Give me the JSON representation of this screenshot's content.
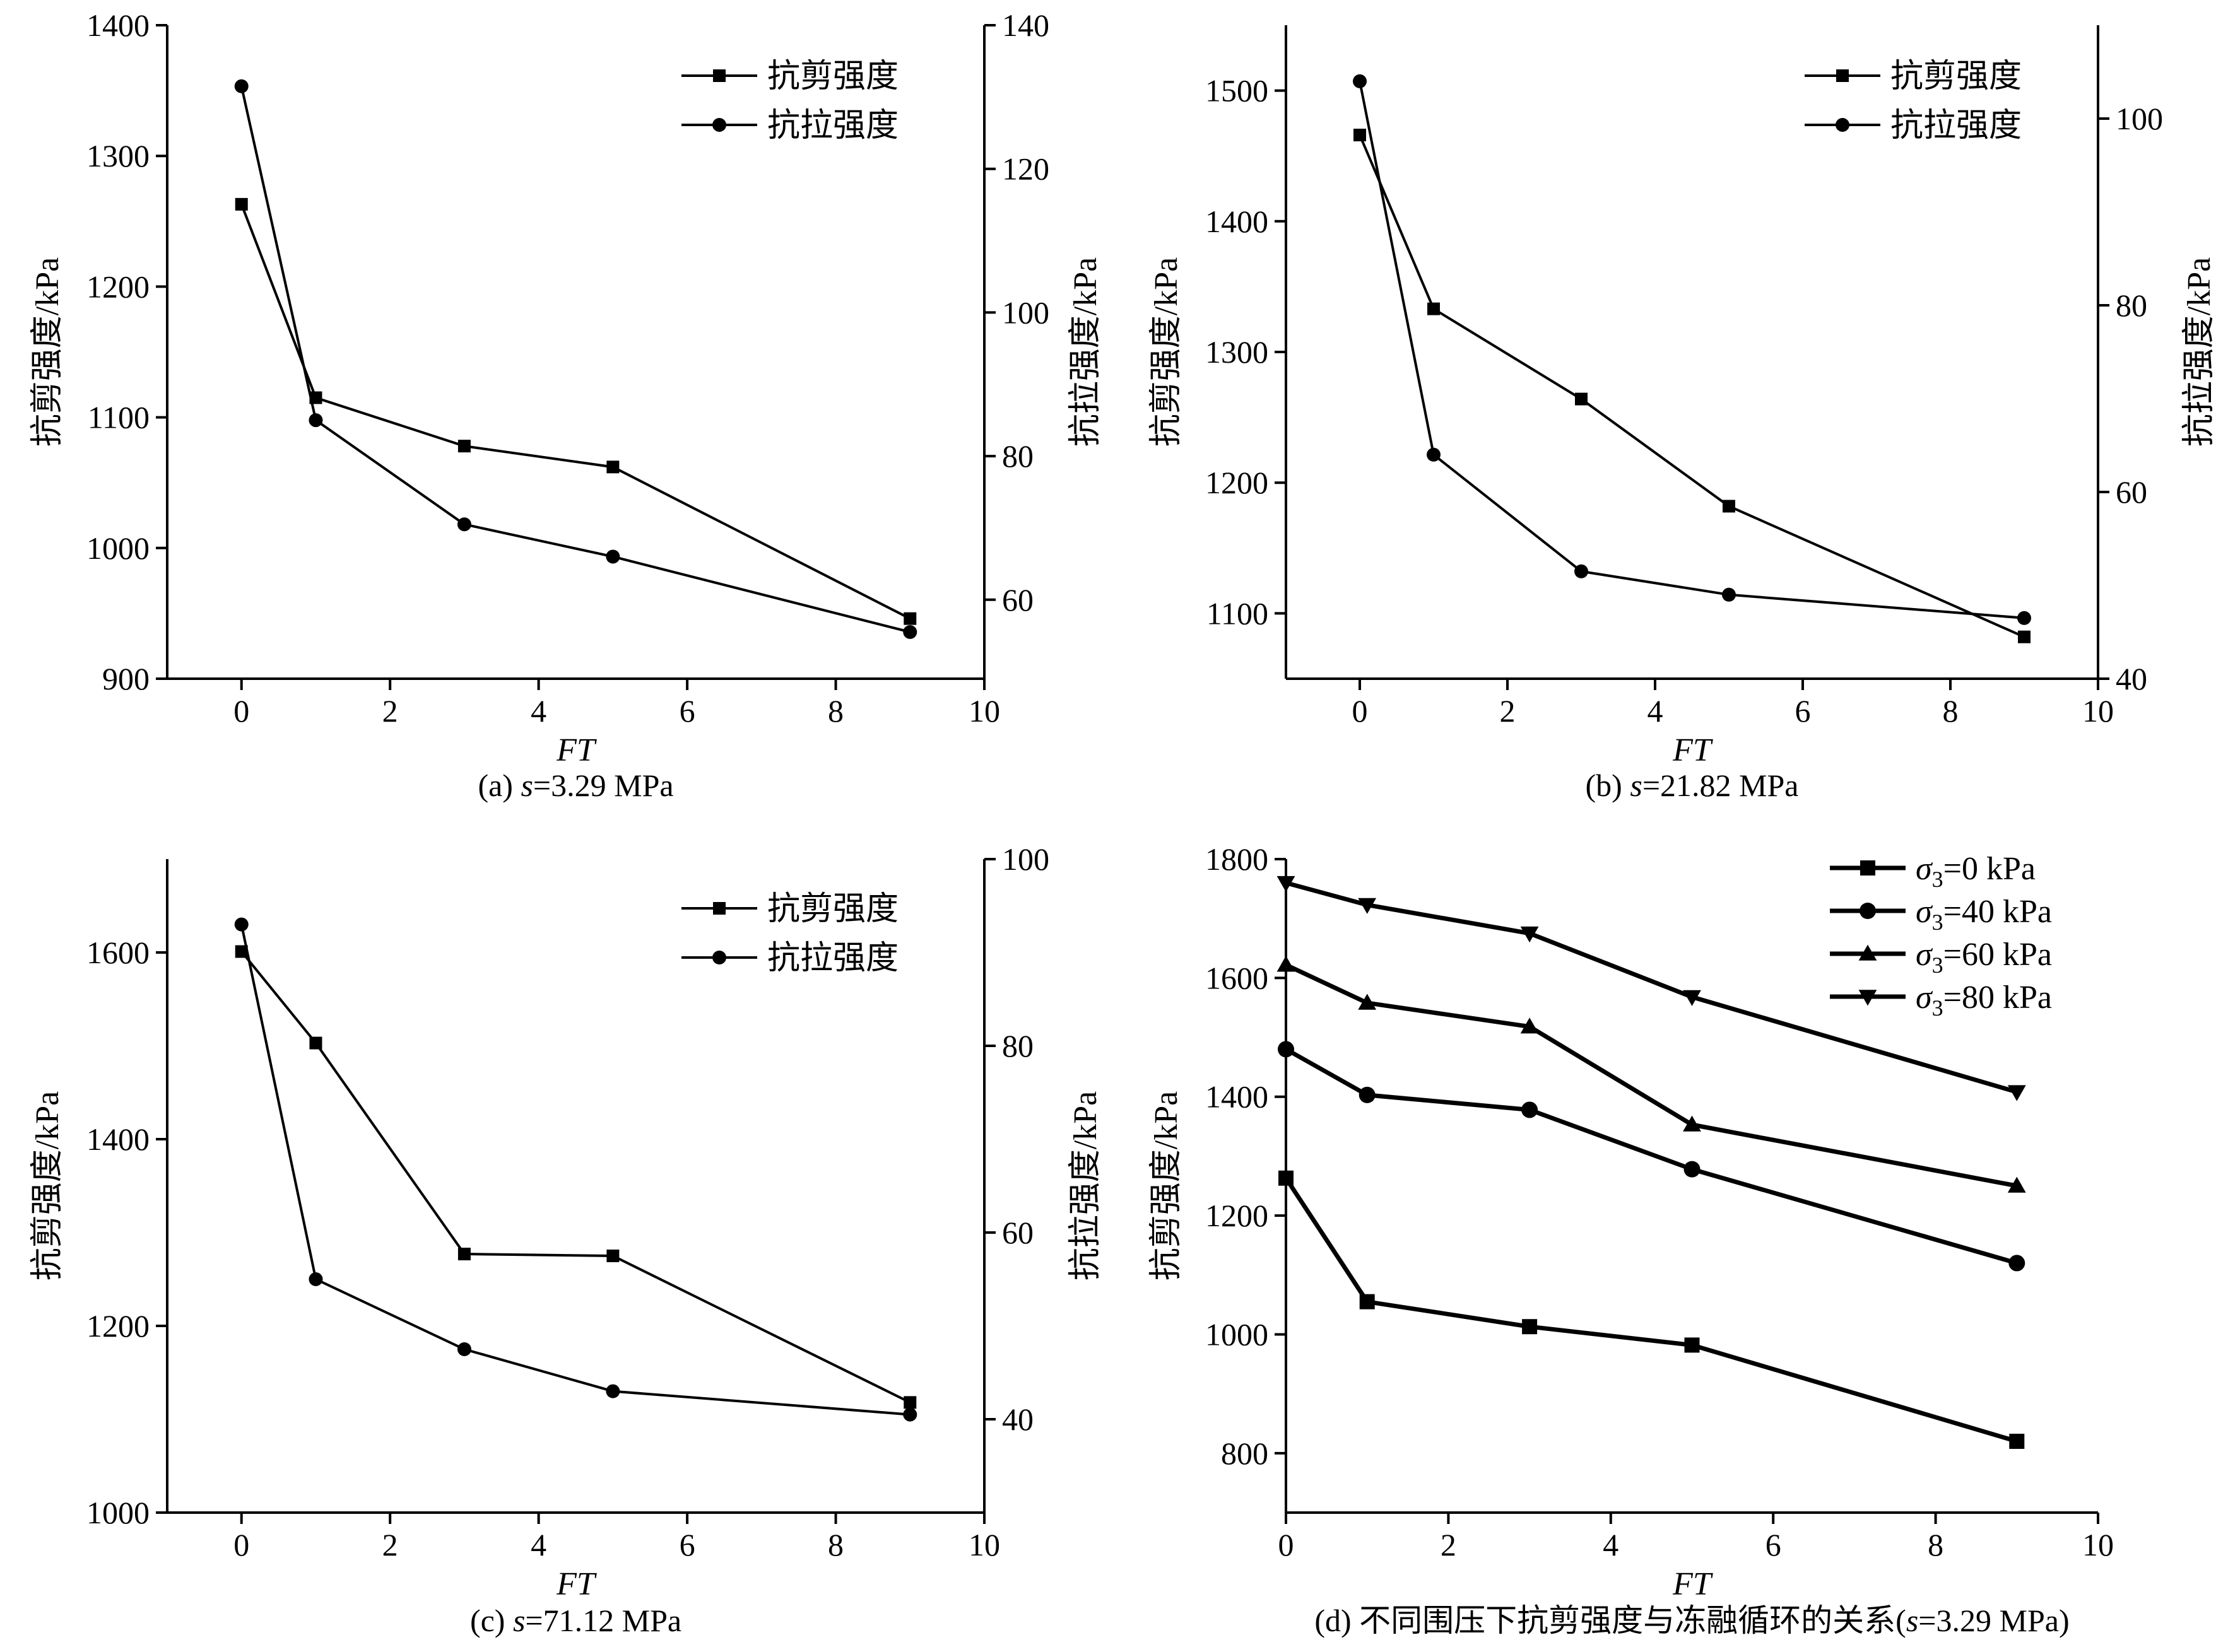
{
  "chart_data": [
    {
      "type": "line",
      "panel": "a",
      "caption_prefix": "(a) ",
      "caption_var": "s",
      "caption_suffix": "=3.29 MPa",
      "xlabel": "FT",
      "ylabel_left": "抗剪强度/kPa",
      "ylabel_right": "抗拉强度/kPa",
      "xlim": [
        -1,
        10
      ],
      "xticks": [
        0,
        2,
        4,
        6,
        8,
        10
      ],
      "ylim_left": [
        900,
        1400
      ],
      "yticks_left": [
        900,
        1000,
        1100,
        1200,
        1300,
        1400
      ],
      "ylim_right": [
        49,
        140
      ],
      "yticks_right": [
        60,
        80,
        100,
        120,
        140
      ],
      "legend_position": "top-right",
      "series": [
        {
          "name": "抗剪强度",
          "marker": "square",
          "axis": "left",
          "x": [
            0,
            1,
            3,
            5,
            9
          ],
          "y": [
            1263,
            1115,
            1078,
            1062,
            946
          ]
        },
        {
          "name": "抗拉强度",
          "marker": "circle",
          "axis": "right",
          "x": [
            0,
            1,
            3,
            5,
            9
          ],
          "y": [
            131.5,
            85,
            70.5,
            66,
            55.5
          ]
        }
      ]
    },
    {
      "type": "line",
      "panel": "b",
      "caption_prefix": "(b) ",
      "caption_var": "s",
      "caption_suffix": "=21.82 MPa",
      "xlabel": "FT",
      "ylabel_left": "抗剪强度/kPa",
      "ylabel_right": "抗拉强度/kPa",
      "xlim": [
        -1,
        10
      ],
      "xticks": [
        0,
        2,
        4,
        6,
        8,
        10
      ],
      "ylim_left": [
        1050,
        1550
      ],
      "yticks_left": [
        1100,
        1200,
        1300,
        1400,
        1500
      ],
      "ylim_right": [
        40,
        110
      ],
      "yticks_right": [
        40,
        60,
        80,
        100
      ],
      "legend_position": "top-right",
      "series": [
        {
          "name": "抗剪强度",
          "marker": "square",
          "axis": "left",
          "x": [
            0,
            1,
            3,
            5,
            9
          ],
          "y": [
            1466,
            1333,
            1264,
            1182,
            1082
          ]
        },
        {
          "name": "抗拉强度",
          "marker": "circle",
          "axis": "right",
          "x": [
            0,
            1,
            3,
            5,
            9
          ],
          "y": [
            104,
            64,
            51.5,
            49,
            46.5
          ]
        }
      ]
    },
    {
      "type": "line",
      "panel": "c",
      "caption_prefix": "(c) ",
      "caption_var": "s",
      "caption_suffix": "=71.12 MPa",
      "xlabel": "FT",
      "ylabel_left": "抗剪强度/kPa",
      "ylabel_right": "抗拉强度/kPa",
      "xlim": [
        -1,
        10
      ],
      "xticks": [
        0,
        2,
        4,
        6,
        8,
        10
      ],
      "ylim_left": [
        1000,
        1700
      ],
      "yticks_left": [
        1000,
        1200,
        1400,
        1600
      ],
      "ylim_right": [
        30,
        100
      ],
      "yticks_right": [
        40,
        60,
        80,
        100
      ],
      "legend_position": "top-right",
      "series": [
        {
          "name": "抗剪强度",
          "marker": "square",
          "axis": "left",
          "x": [
            0,
            1,
            3,
            5,
            9
          ],
          "y": [
            1601,
            1503,
            1277,
            1275,
            1118
          ]
        },
        {
          "name": "抗拉强度",
          "marker": "circle",
          "axis": "right",
          "x": [
            0,
            1,
            3,
            5,
            9
          ],
          "y": [
            93,
            55,
            47.5,
            43,
            40.5
          ]
        }
      ]
    },
    {
      "type": "line",
      "panel": "d",
      "caption_prefix": "(d) 不同围压下抗剪强度与冻融循环的关系(",
      "caption_var": "s",
      "caption_suffix": "=3.29 MPa)",
      "xlabel": "FT",
      "ylabel_left": "抗剪强度/kPa",
      "xlim": [
        0,
        10
      ],
      "xticks": [
        0,
        2,
        4,
        6,
        8,
        10
      ],
      "ylim_left": [
        700,
        1800
      ],
      "yticks_left": [
        800,
        1000,
        1200,
        1400,
        1600,
        1800
      ],
      "legend_position": "top-right",
      "series": [
        {
          "name_sym": "σ",
          "name_sub": "3",
          "name_rest": "=0 kPa",
          "marker": "square",
          "axis": "left",
          "x": [
            0,
            1,
            3,
            5,
            9
          ],
          "y": [
            1263,
            1055,
            1013,
            982,
            820
          ]
        },
        {
          "name_sym": "σ",
          "name_sub": "3",
          "name_rest": "=40 kPa",
          "marker": "circle",
          "axis": "left",
          "x": [
            0,
            1,
            3,
            5,
            9
          ],
          "y": [
            1480,
            1403,
            1378,
            1278,
            1120
          ]
        },
        {
          "name_sym": "σ",
          "name_sub": "3",
          "name_rest": "=60 kPa",
          "marker": "triangle-up",
          "axis": "left",
          "x": [
            0,
            1,
            3,
            5,
            9
          ],
          "y": [
            1622,
            1558,
            1518,
            1353,
            1250
          ]
        },
        {
          "name_sym": "σ",
          "name_sub": "3",
          "name_rest": "=80 kPa",
          "marker": "triangle-down",
          "axis": "left",
          "x": [
            0,
            1,
            3,
            5,
            9
          ],
          "y": [
            1760,
            1723,
            1675,
            1568,
            1408
          ]
        }
      ]
    }
  ]
}
